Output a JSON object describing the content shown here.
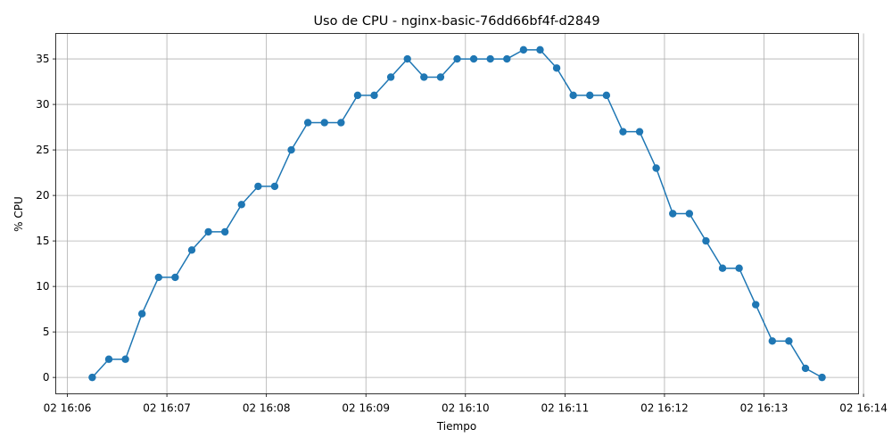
{
  "chart_data": {
    "type": "line",
    "title": "Uso de CPU - nginx-basic-76dd66bf4f-d2849",
    "xlabel": "Tiempo",
    "ylabel": "% CPU",
    "grid": true,
    "x_ticks": [
      "02 16:06",
      "02 16:07",
      "02 16:08",
      "02 16:09",
      "02 16:10",
      "02 16:11",
      "02 16:12",
      "02 16:13",
      "02 16:14"
    ],
    "y_ticks": [
      0,
      5,
      10,
      15,
      20,
      25,
      30,
      35
    ],
    "xlim": [
      "16:06:00",
      "16:14:00"
    ],
    "ylim": [
      -1.8,
      37.8
    ],
    "line_color": "#1f77b4",
    "series": [
      {
        "x": [
          "16:06:15",
          "16:06:25",
          "16:06:35",
          "16:06:45",
          "16:06:55",
          "16:07:05",
          "16:07:15",
          "16:07:25",
          "16:07:35",
          "16:07:45",
          "16:07:55",
          "16:08:05",
          "16:08:15",
          "16:08:25",
          "16:08:35",
          "16:08:45",
          "16:08:55",
          "16:09:05",
          "16:09:15",
          "16:09:25",
          "16:09:35",
          "16:09:45",
          "16:09:55",
          "16:10:05",
          "16:10:15",
          "16:10:25",
          "16:10:35",
          "16:10:45",
          "16:10:55",
          "16:11:05",
          "16:11:15",
          "16:11:25",
          "16:11:35",
          "16:11:45",
          "16:11:55",
          "16:12:05",
          "16:12:15",
          "16:12:25",
          "16:12:35",
          "16:12:45",
          "16:12:55",
          "16:13:05",
          "16:13:15",
          "16:13:25",
          "16:13:35"
        ],
        "y": [
          0,
          2,
          2,
          7,
          11,
          11,
          14,
          16,
          16,
          19,
          21,
          21,
          25,
          28,
          28,
          28,
          31,
          31,
          33,
          35,
          33,
          33,
          35,
          35,
          35,
          35,
          36,
          36,
          34,
          31,
          31,
          31,
          27,
          27,
          23,
          18,
          18,
          15,
          12,
          12,
          8,
          4,
          4,
          1,
          0
        ]
      }
    ]
  }
}
